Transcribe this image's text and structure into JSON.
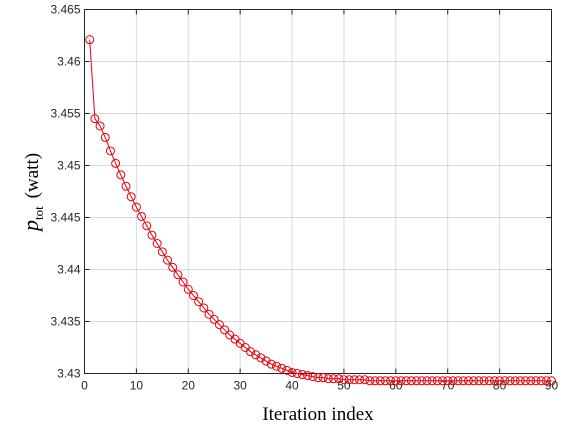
{
  "chart_data": {
    "type": "line",
    "xlabel": "Iteration index",
    "ylabel_main": "p",
    "ylabel_sub": "tot",
    "ylabel_unit": "(watt)",
    "xlim": [
      0,
      90
    ],
    "ylim": [
      3.43,
      3.465
    ],
    "xticks": [
      "0",
      "10",
      "20",
      "30",
      "40",
      "50",
      "60",
      "70",
      "80",
      "90"
    ],
    "yticks": [
      "3.43",
      "3.435",
      "3.44",
      "3.445",
      "3.45",
      "3.455",
      "3.46",
      "3.465"
    ],
    "grid": true,
    "series": [
      {
        "color": "#e8000b",
        "marker": "circle-open",
        "x": [
          1,
          2,
          3,
          4,
          5,
          6,
          7,
          8,
          9,
          10,
          11,
          12,
          13,
          14,
          15,
          16,
          17,
          18,
          19,
          20,
          21,
          22,
          23,
          24,
          25,
          26,
          27,
          28,
          29,
          30,
          31,
          32,
          33,
          34,
          35,
          36,
          37,
          38,
          39,
          40,
          41,
          42,
          43,
          44,
          45,
          46,
          47,
          48,
          49,
          50,
          51,
          52,
          53,
          54,
          55,
          56,
          57,
          58,
          59,
          60,
          61,
          62,
          63,
          64,
          65,
          66,
          67,
          68,
          69,
          70,
          71,
          72,
          73,
          74,
          75,
          76,
          77,
          78,
          79,
          80,
          81,
          82,
          83,
          84,
          85,
          86,
          87,
          88,
          89,
          90
        ],
        "y": [
          3.4621,
          3.4545,
          3.4538,
          3.4527,
          3.4514,
          3.4502,
          3.4491,
          3.448,
          3.447,
          3.446,
          3.4451,
          3.4442,
          3.4433,
          3.4425,
          3.4417,
          3.4409,
          3.4402,
          3.4395,
          3.4388,
          3.4381,
          3.4375,
          3.4369,
          3.4363,
          3.4357,
          3.4352,
          3.4347,
          3.4342,
          3.4337,
          3.4333,
          3.4329,
          3.4325,
          3.4321,
          3.4318,
          3.4315,
          3.4312,
          3.4309,
          3.4307,
          3.4305,
          3.4303,
          3.4301,
          3.43,
          3.4299,
          3.4298,
          3.4297,
          3.4296,
          3.4296,
          3.4295,
          3.4295,
          3.4295,
          3.4294,
          3.4294,
          3.4294,
          3.4294,
          3.4294,
          3.4293,
          3.4293,
          3.4293,
          3.4293,
          3.4293,
          3.4293,
          3.4293,
          3.4293,
          3.4293,
          3.4293,
          3.4293,
          3.4293,
          3.4293,
          3.4293,
          3.4293,
          3.4293,
          3.4293,
          3.4293,
          3.4293,
          3.4293,
          3.4293,
          3.4293,
          3.4293,
          3.4293,
          3.4293,
          3.4293,
          3.4293,
          3.4293,
          3.4293,
          3.4293,
          3.4293,
          3.4293,
          3.4293,
          3.4293,
          3.4293,
          3.4293
        ]
      }
    ]
  }
}
